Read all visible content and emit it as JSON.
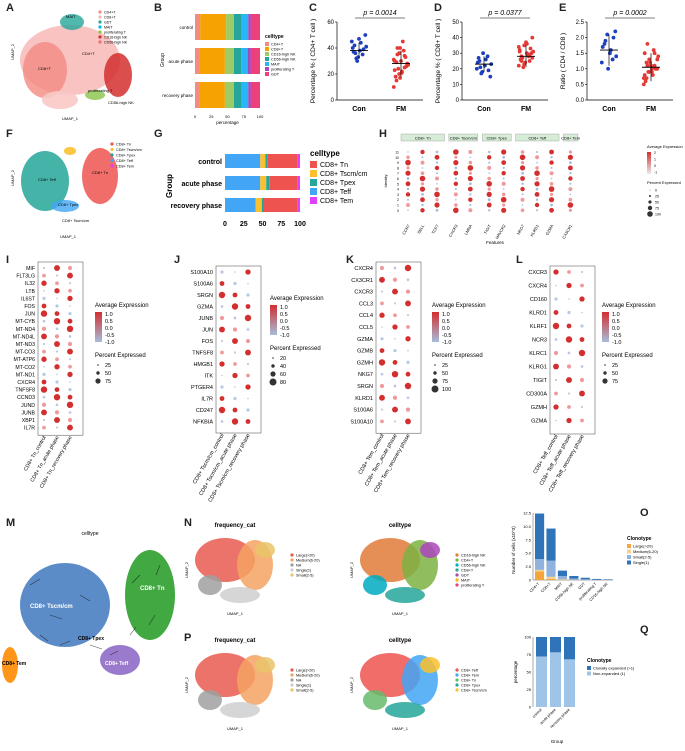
{
  "panel_labels": [
    "A",
    "B",
    "C",
    "D",
    "E",
    "F",
    "G",
    "H",
    "I",
    "J",
    "K",
    "L",
    "M",
    "N",
    "O",
    "P",
    "Q"
  ],
  "colors": {
    "tn": "#ef5350",
    "tscm": "#fbc02d",
    "tpex": "#26a69a",
    "teff": "#42a5f5",
    "tem": "#e040fb",
    "red": "#d32f2f",
    "blue": "#1e3fbf",
    "orange": "#ff8a00",
    "green": "#2e9e2e",
    "purple": "#8e6cc7",
    "grey": "#bdbdbd"
  },
  "A": {
    "xlab": "UMAP_1",
    "ylab": "UMAP_2",
    "legend": [
      "CD4+T",
      "CD8+T",
      "GDT",
      "MAIT",
      "proliferating T",
      "CD16-high NK",
      "CD56-high NK"
    ],
    "clusters": [
      "CD8+T",
      "CD4+T",
      "MAIT",
      "proliferating T",
      "CD56-high NK"
    ]
  },
  "B": {
    "ylabel": "Group",
    "xlabel": "percentage",
    "legend_title": "celltype",
    "legend": [
      "CD4+T",
      "CD8+T",
      "CD16-high NK",
      "CD56-high NK",
      "MAIT",
      "proliferating T",
      "GDT"
    ],
    "groups": [
      "control",
      "acute phase",
      "recovery phase"
    ],
    "ticks": [
      "0",
      "25",
      "50",
      "75",
      "100"
    ]
  },
  "C": {
    "pval": "p = 0.0014",
    "ylabel": "Percentage % ( CD4+ T cell )",
    "cats": [
      "Con",
      "FM"
    ],
    "means": [
      38,
      28
    ],
    "sd": [
      6,
      10
    ],
    "ylim": [
      0,
      60
    ],
    "yticks": [
      "0",
      "20",
      "40",
      "60"
    ],
    "con": [
      45,
      42,
      30,
      38,
      35,
      50,
      40,
      36,
      33,
      44,
      39,
      41,
      37,
      32,
      47
    ],
    "fm": [
      10,
      15,
      20,
      22,
      25,
      28,
      30,
      35,
      40,
      45,
      33,
      27,
      18,
      24,
      30,
      38,
      26,
      31,
      29,
      36,
      21,
      34,
      28,
      23,
      40,
      17
    ]
  },
  "D": {
    "pval": "p = 0.0377",
    "ylabel": "Percentage % ( CD8+ T cell )",
    "cats": [
      "Con",
      "FM"
    ],
    "means": [
      23,
      28
    ],
    "sd": [
      5,
      7
    ],
    "ylim": [
      0,
      50
    ],
    "yticks": [
      "0",
      "10",
      "20",
      "30",
      "40",
      "50"
    ],
    "con": [
      20,
      25,
      18,
      22,
      28,
      15,
      24,
      21,
      30,
      26,
      19,
      23,
      27,
      17
    ],
    "fm": [
      22,
      28,
      35,
      30,
      25,
      40,
      32,
      27,
      24,
      29,
      33,
      31,
      26,
      21,
      37,
      28,
      30,
      34,
      25,
      23,
      36,
      29,
      27,
      31
    ]
  },
  "E": {
    "pval": "p = 0.0002",
    "ylabel": "Ratio ( CD4 / CD8 )",
    "cats": [
      "Con",
      "FM"
    ],
    "means": [
      1.6,
      1.05
    ],
    "sd": [
      0.5,
      0.45
    ],
    "ylim": [
      0,
      2.5
    ],
    "yticks": [
      "0.0",
      "0.5",
      "1.0",
      "1.5",
      "2.0",
      "2.5"
    ],
    "con": [
      1.2,
      1.8,
      2.1,
      1.5,
      1.3,
      2.2,
      1.7,
      1.9,
      1.0,
      1.6,
      2.0,
      1.4
    ],
    "fm": [
      0.5,
      0.7,
      0.9,
      1.0,
      1.1,
      1.3,
      1.5,
      1.8,
      1.2,
      0.8,
      1.0,
      1.4,
      0.6,
      0.9,
      1.1,
      1.6,
      1.0,
      0.7,
      1.2,
      1.3,
      0.9,
      1.5,
      1.0,
      0.8,
      1.1
    ]
  },
  "F": {
    "xlab": "UMAP_1",
    "ylab": "UMAP_2",
    "legend": [
      "CD8+ Tn",
      "CD8+ Tscm/cm",
      "CD8+ Tpex",
      "CD8+ Teff",
      "CD8+ Tem"
    ],
    "clusters": [
      "CD8+ Tn",
      "CD8+ Teff",
      "CD8+ Tpex",
      "CD8+ Tscm/cm"
    ]
  },
  "G": {
    "ylabel": "Group",
    "legend_title": "celltype",
    "legend": [
      "CD8+ Tn",
      "CD8+ Tscm/cm",
      "CD8+ Tpex",
      "CD8+ Teff",
      "CD8+ Tem"
    ],
    "groups": [
      "control",
      "acute phase",
      "recovery phase"
    ],
    "ticks": [
      "0",
      "25",
      "50",
      "75",
      "100"
    ]
  },
  "H": {
    "headers": [
      "CD8+ Tn",
      "CD8+ Tscm/cm",
      "CD8+ Tpex",
      "CD8+ Teff",
      "CD8+ Tem"
    ],
    "genes": [
      "CCR7",
      "SELL",
      "TCF7",
      "CXCR3",
      "LMNA",
      "TIGIT",
      "HAVCR2",
      "NKG7",
      "KLRD1",
      "GZMA",
      "CX3CR1"
    ],
    "xlab": "Features",
    "ylab": "Identity",
    "legend1": "Average Expression",
    "legend2": "Percent Expressed",
    "ticks1": [
      "2",
      "1",
      "0",
      "-1"
    ],
    "ticks2": [
      "0",
      "25",
      "50",
      "75",
      "100"
    ]
  },
  "I": {
    "genes": [
      "MIF",
      "FLT3LG",
      "IL32",
      "LTB",
      "IL6ST",
      "FOS",
      "JUN",
      "MT-CYB",
      "MT-ND4",
      "MT-ND4L",
      "MT-ND3",
      "MT-CO3",
      "MT-ATP6",
      "MT-CO2",
      "MT-ND1",
      "CXCR4",
      "TNFSF8",
      "CCND3",
      "JUND",
      "JUNB",
      "XBP1",
      "IL7R"
    ],
    "groups": [
      "CD8+ Tn_control",
      "CD8+ Tn_acute phase",
      "CD8+ Tn_recovery phase"
    ]
  },
  "J": {
    "genes": [
      "S100A10",
      "S100A6",
      "SRGN",
      "GZMA",
      "JUNB",
      "JUN",
      "FOS",
      "TNFSF8",
      "HMGB1",
      "ITK",
      "PTGER4",
      "IL7R",
      "CD247",
      "NFKBIA"
    ],
    "groups": [
      "CD8+ Tscm/cm_control",
      "CD8+ Tscm/cm_acute phase",
      "CD8+ Tscm/cm_recovery phase"
    ],
    "legend1": "Average Expression",
    "ticks1": [
      "1.0",
      "0.5",
      "0.0",
      "-0.5",
      "-1.0"
    ],
    "legend2": "Percent Expressed",
    "ticks2": [
      "20",
      "40",
      "60",
      "80"
    ]
  },
  "K": {
    "genes": [
      "CXCR4",
      "CX3CR1",
      "CXCR3",
      "CCL3",
      "CCL4",
      "CCL5",
      "GZMA",
      "GZMB",
      "GZMH",
      "NKG7",
      "SRGN",
      "KLRD1",
      "S100A6",
      "S100A10"
    ],
    "groups": [
      "CD8+ Tem_control",
      "CD8+ Tem_acute phase",
      "CD8+ Tem_recovery phase"
    ],
    "legend1": "Average Expression",
    "ticks1": [
      "1.0",
      "0.5",
      "0.0",
      "-0.5",
      "-1.0"
    ],
    "legend2": "Percent Expressed",
    "ticks2": [
      "25",
      "50",
      "75",
      "100"
    ]
  },
  "L": {
    "genes": [
      "CXCR3",
      "CXCR4",
      "CD160",
      "KLRD1",
      "KLRF1",
      "NCR3",
      "KLRC1",
      "KLRG1",
      "TIGIT",
      "CD300A",
      "GZMH",
      "GZMA"
    ],
    "groups": [
      "CD8+ Teff_control",
      "CD8+ Teff_acute phase",
      "CD8+ Teff_recovery phase"
    ],
    "legend1": "Average Expression",
    "ticks1": [
      "1.0",
      "0.5",
      "0.0",
      "-0.5",
      "-1.0"
    ],
    "legend2": "Percent Expressed",
    "ticks2": [
      "25",
      "50",
      "75"
    ]
  },
  "I_legend": {
    "legend1": "Average Expression",
    "ticks1": [
      "1.0",
      "0.5",
      "0.0",
      "-0.5",
      "-1.0"
    ],
    "legend2": "Percent Expressed",
    "ticks2": [
      "25",
      "50",
      "75"
    ]
  },
  "M": {
    "title": "celltype",
    "labels": [
      "CD8+ Tscm/cm",
      "CD8+ Tem",
      "CD8+ Tn",
      "CD8+ Tpex",
      "CD8+ Teff"
    ]
  },
  "N": {
    "left_title": "frequency_cat",
    "right_title": "celltype",
    "left_legend": [
      "Large(>20)",
      "Medium(6-20)",
      "NA",
      "Single(1)",
      "Small(2-5)"
    ],
    "right_legend": [
      "CD16-high NK",
      "CD4+T",
      "CD56-high NK",
      "CD8+T",
      "GDT",
      "MAIT",
      "proliferating T"
    ],
    "xlab": "UMAP_1",
    "ylab": "UMAP_2"
  },
  "O": {
    "legend_title": "Clonotype",
    "legend": [
      "Large(>20)",
      "Medium(6-20)",
      "Small(2-5)",
      "Single(1)"
    ],
    "ylabel": "Number of cells (x10^3)",
    "yticks": [
      "0",
      "2.5",
      "5.0",
      "7.5",
      "10.0",
      "12.5"
    ],
    "cats": [
      "CD4+T",
      "CD8+T",
      "MAIT",
      "CD56-high NK",
      "GDT",
      "proliferating T",
      "CD16-high NK"
    ],
    "stacks": [
      [
        8.5,
        2.0,
        0.3,
        1.6
      ],
      [
        6.0,
        3.0,
        0.4,
        0.2
      ],
      [
        1.0,
        0.6,
        0.1,
        0.05
      ],
      [
        0.5,
        0.2,
        0.05,
        0
      ],
      [
        0.3,
        0.1,
        0.02,
        0
      ],
      [
        0.15,
        0.05,
        0,
        0
      ],
      [
        0.1,
        0.02,
        0,
        0
      ]
    ]
  },
  "P": {
    "left_title": "frequency_cat",
    "right_title": "celltype",
    "left_legend": [
      "Large(>20)",
      "Medium(6-20)",
      "NA",
      "Single(1)",
      "Small(2-5)"
    ],
    "right_legend": [
      "CD8+ Teff",
      "CD8+ Tem",
      "CD8+ Tn",
      "CD8+ Tpex",
      "CD8+ Tscm/cm"
    ],
    "xlab": "UMAP_1",
    "ylab": "UMAP_2"
  },
  "Q": {
    "legend_title": "Clonotype",
    "legend": [
      "Clonally expanded (>1)",
      "Non-expanded (1)"
    ],
    "ylabel": "percentage",
    "xlabel": "Group",
    "yticks": [
      "0",
      "25",
      "50",
      "75",
      "100"
    ],
    "groups": [
      "control",
      "acute phase",
      "recovery phase"
    ],
    "expanded": [
      72,
      78,
      68
    ]
  }
}
